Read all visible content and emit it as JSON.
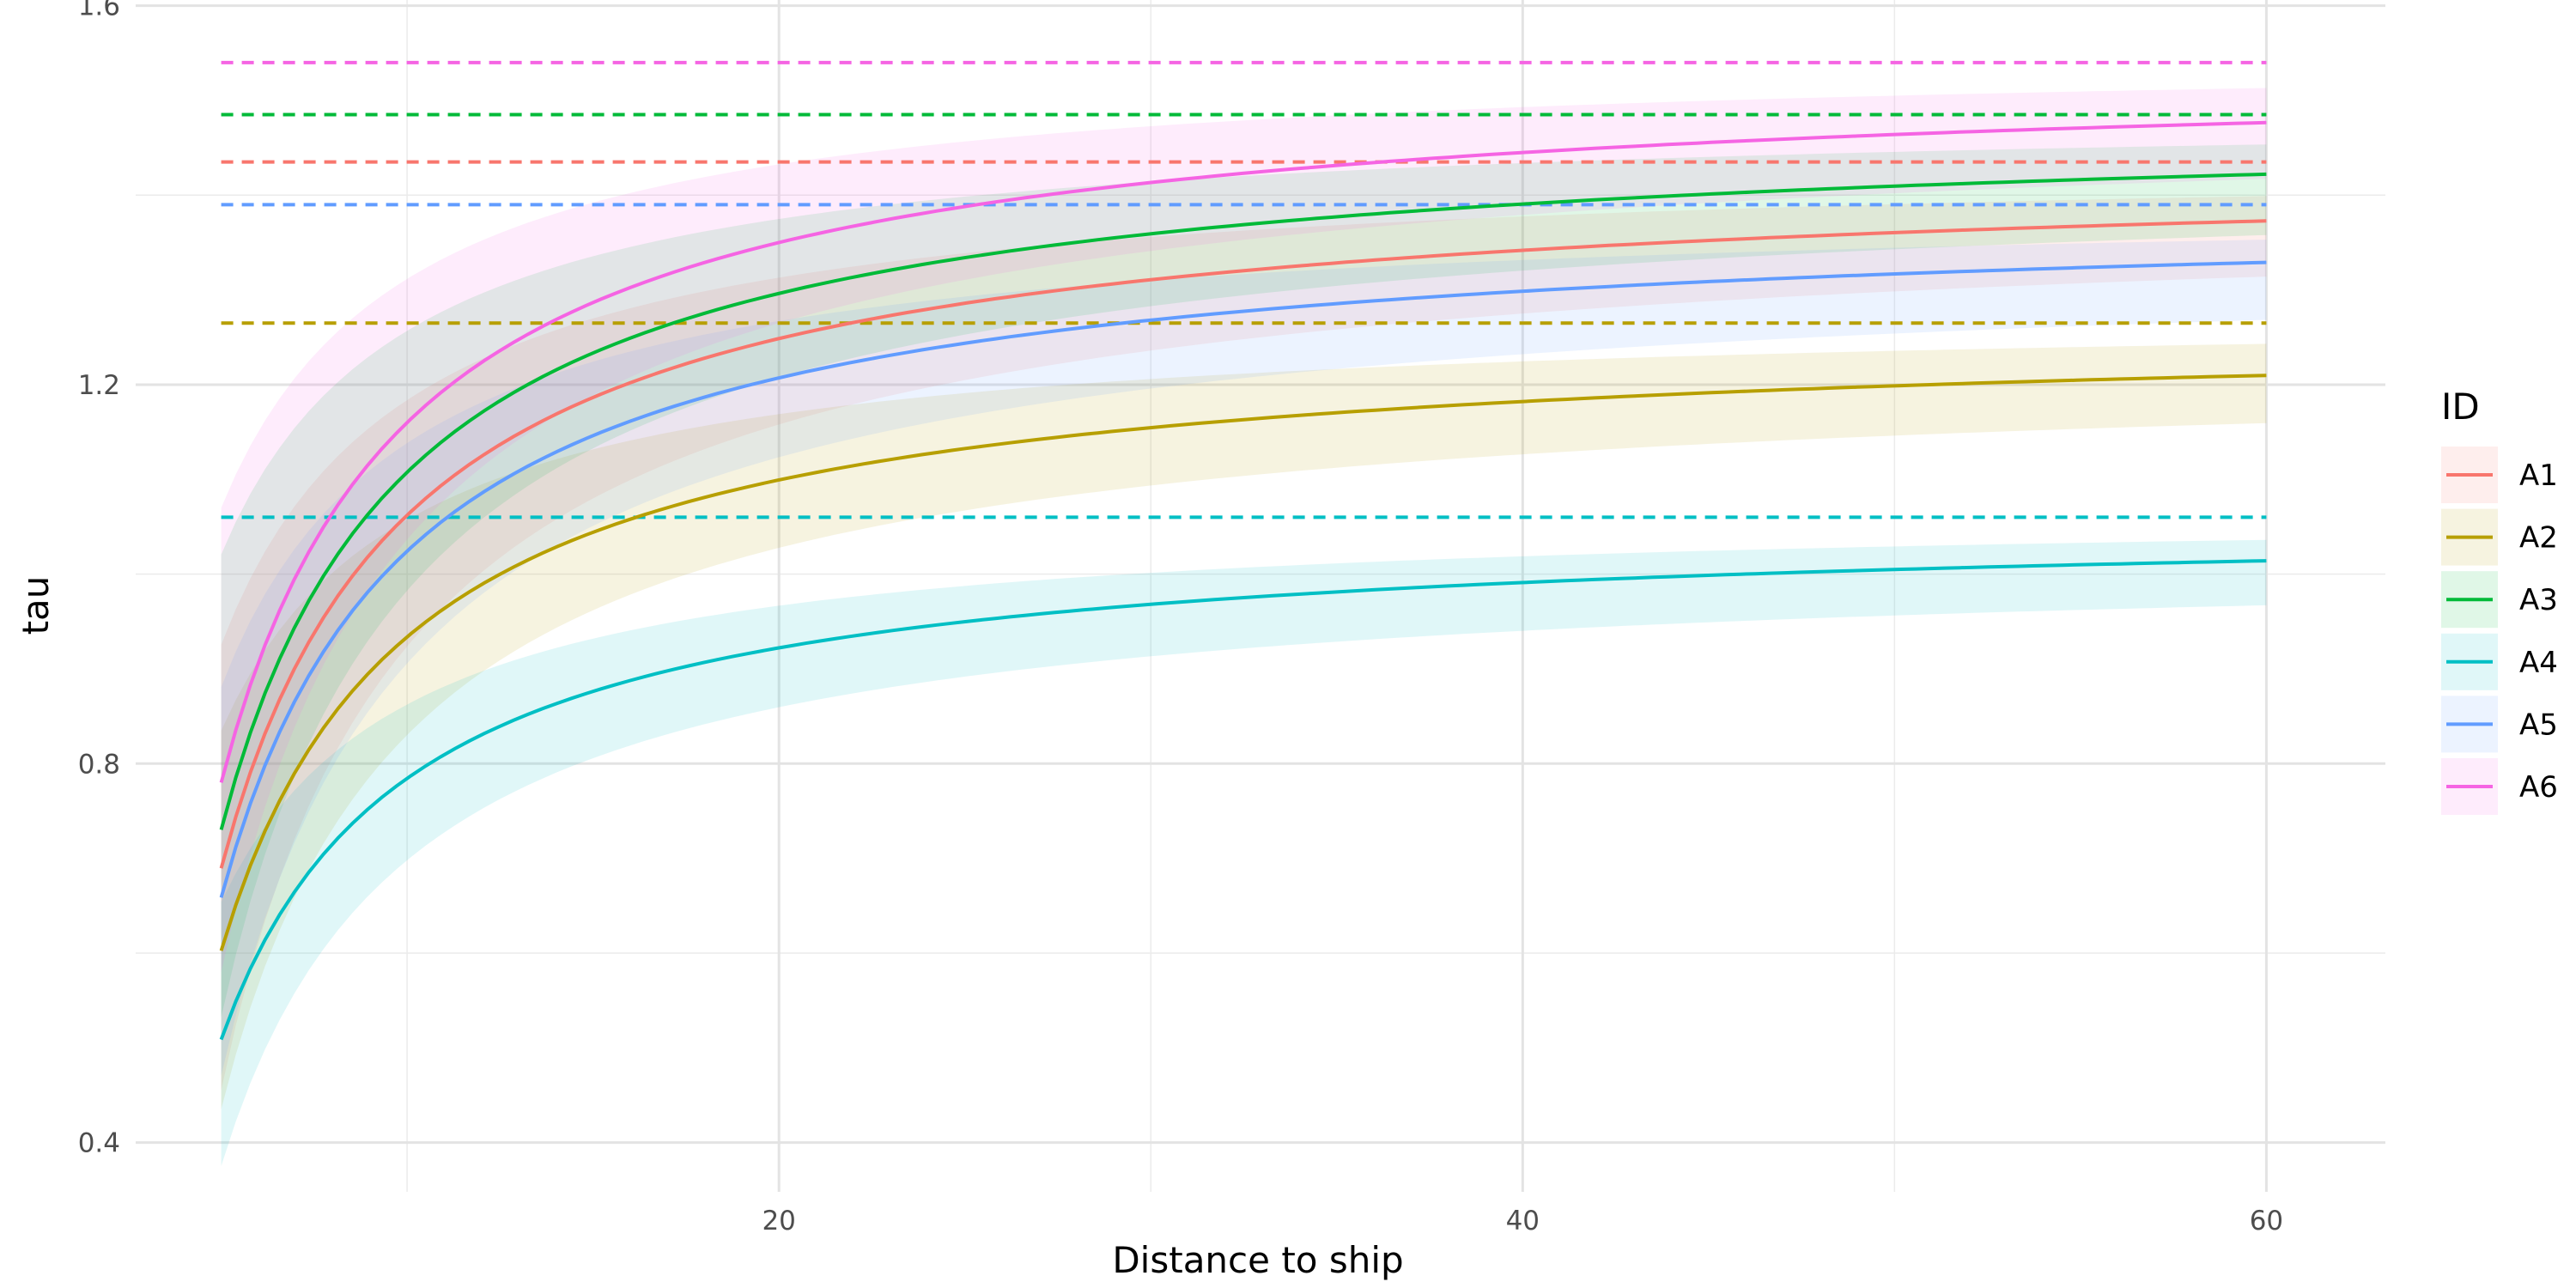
{
  "chart_data": {
    "type": "line",
    "xlabel": "Distance to ship",
    "ylabel": "tau",
    "xlim": [
      2.7,
      63.2
    ],
    "ylim": [
      0.348,
      1.606
    ],
    "x_ticks": [
      20,
      40,
      60
    ],
    "x_minor": [
      10,
      30,
      50
    ],
    "y_ticks": [
      0.4,
      0.8,
      1.2,
      1.6
    ],
    "y_minor": [
      0.6,
      1.0,
      1.4
    ],
    "x_range": [
      5,
      60
    ],
    "grid": true,
    "legend": {
      "title": "ID",
      "position": "right"
    },
    "series": [
      {
        "name": "A1",
        "color": "#F8766D",
        "asymptote": 1.435,
        "y0": 0.725,
        "k": 5.25,
        "band_lower0": 0.5,
        "band_upper0": 0.95,
        "band_lower_end": 1.33,
        "band_upper_end": 1.38
      },
      {
        "name": "A2",
        "color": "#B79F00",
        "asymptote": 1.265,
        "y0": 0.64,
        "k": 5.3,
        "band_lower0": 0.48,
        "band_upper0": 0.86,
        "band_lower_end": 1.17,
        "band_upper_end": 1.225
      },
      {
        "name": "A3",
        "color": "#00BA38",
        "asymptote": 1.485,
        "y0": 0.745,
        "k": 5.1,
        "band_lower0": 0.55,
        "band_upper0": 1.03,
        "band_lower_end": 1.37,
        "band_upper_end": 1.43
      },
      {
        "name": "A4",
        "color": "#00BFC4",
        "asymptote": 1.06,
        "y0": 0.53,
        "k": 5.2,
        "band_lower0": 0.4,
        "band_upper0": 0.67,
        "band_lower_end": 0.975,
        "band_upper_end": 1.025
      },
      {
        "name": "A5",
        "color": "#619CFF",
        "asymptote": 1.39,
        "y0": 0.7,
        "k": 5.3,
        "band_lower0": 0.52,
        "band_upper0": 0.91,
        "band_lower_end": 1.28,
        "band_upper_end": 1.335
      },
      {
        "name": "A6",
        "color": "#F564E3",
        "asymptote": 1.54,
        "y0": 0.78,
        "k": 5.0,
        "band_lower0": 0.58,
        "band_upper0": 1.07,
        "band_lower_end": 1.43,
        "band_upper_end": 1.49
      }
    ]
  }
}
